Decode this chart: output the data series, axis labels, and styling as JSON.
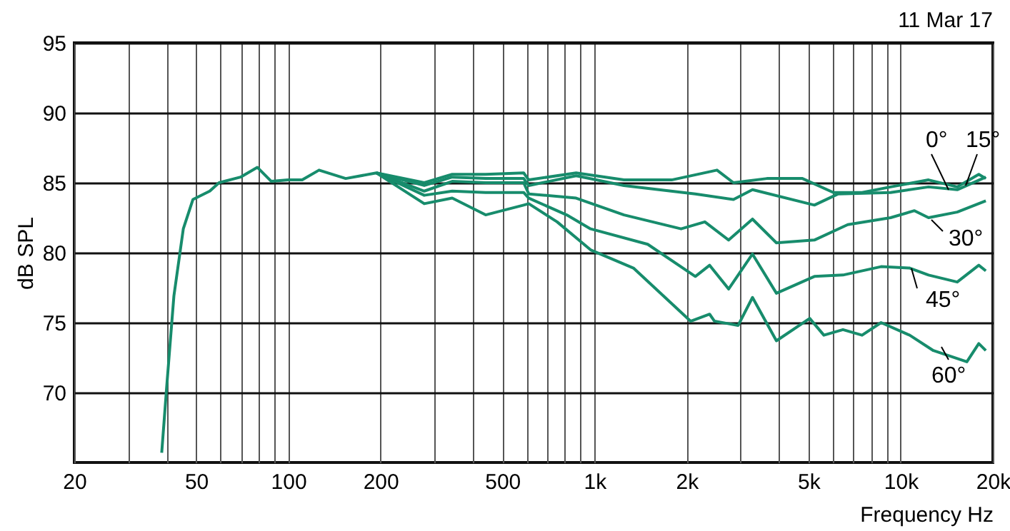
{
  "chart_data": {
    "type": "line",
    "xlabel": "Frequency Hz",
    "ylabel": "dB SPL",
    "annotations": [
      "11 Mar 17"
    ],
    "log": "x",
    "grid": true,
    "legend": false,
    "marker": "none",
    "line_style": "solid",
    "xlim": [
      20,
      20000
    ],
    "ylim": [
      65,
      95
    ],
    "xticks": [
      20,
      {
        "value": 30,
        "label": null
      },
      {
        "value": 40,
        "label": null
      },
      50,
      {
        "value": 60,
        "label": null
      },
      {
        "value": 70,
        "label": null
      },
      {
        "value": 80,
        "label": null
      },
      {
        "value": 90,
        "label": null
      },
      100,
      200,
      {
        "value": 300,
        "label": null
      },
      {
        "value": 400,
        "label": null
      },
      500,
      {
        "value": 600,
        "label": null
      },
      {
        "value": 700,
        "label": null
      },
      {
        "value": 800,
        "label": null
      },
      {
        "value": 900,
        "label": null
      },
      {
        "value": 1000,
        "label": "1k"
      },
      {
        "value": 2000,
        "label": "2k"
      },
      {
        "value": 3000,
        "label": null
      },
      {
        "value": 4000,
        "label": null
      },
      {
        "value": 5000,
        "label": "5k"
      },
      {
        "value": 6000,
        "label": null
      },
      {
        "value": 7000,
        "label": null
      },
      {
        "value": 8000,
        "label": null
      },
      {
        "value": 9000,
        "label": null
      },
      {
        "value": 10000,
        "label": "10k"
      },
      {
        "value": 20000,
        "label": "20k"
      }
    ],
    "yticks": [
      70,
      75,
      80,
      85,
      90,
      95
    ],
    "series": [
      {
        "name": "0°",
        "color": "#178c6c",
        "x": [
          38.6,
          40,
          42.3,
          45.4,
          48.8,
          55.4,
          59.4,
          69.8,
          79.2,
          88,
          100,
          111,
          126,
          154,
          194,
          278,
          343,
          441,
          587,
          610,
          871,
          1248,
          1786,
          2512,
          2844,
          3656,
          4777,
          6030,
          7480,
          9270,
          12330,
          15300,
          17990,
          18970
        ],
        "values": [
          65.7,
          70.2,
          76.9,
          81.7,
          83.8,
          84.4,
          85.0,
          85.4,
          86.1,
          85.1,
          85.2,
          85.2,
          85.9,
          85.3,
          85.7,
          85.0,
          85.6,
          85.6,
          85.7,
          85.2,
          85.7,
          85.2,
          85.2,
          85.9,
          85.0,
          85.3,
          85.3,
          84.3,
          84.3,
          84.7,
          85.2,
          84.7,
          85.6,
          85.3
        ]
      },
      {
        "name": "15°",
        "color": "#178c6c",
        "x": [
          194,
          278,
          343,
          441,
          587,
          610,
          871,
          1248,
          2135,
          2844,
          3281,
          5225,
          6252,
          9270,
          12330,
          15300,
          18970
        ],
        "values": [
          85.7,
          84.8,
          85.4,
          85.3,
          85.3,
          84.8,
          85.5,
          84.8,
          84.2,
          83.8,
          84.5,
          83.4,
          84.2,
          84.3,
          84.7,
          84.5,
          85.4
        ]
      },
      {
        "name": "30°",
        "color": "#178c6c",
        "x": [
          194,
          278,
          343,
          441,
          587,
          610,
          871,
          1248,
          1918,
          2293,
          2743,
          3281,
          3928,
          5225,
          6715,
          9270,
          11090,
          12330,
          15300,
          18970
        ],
        "values": [
          85.7,
          84.4,
          85.1,
          85.0,
          85.0,
          84.2,
          83.9,
          82.7,
          81.7,
          82.2,
          80.9,
          82.4,
          80.7,
          80.9,
          82.0,
          82.5,
          83.0,
          82.5,
          82.9,
          83.7
        ]
      },
      {
        "name": "45°",
        "color": "#178c6c",
        "x": [
          194,
          278,
          343,
          441,
          587,
          610,
          811,
          971,
          1492,
          2135,
          2377,
          2743,
          3281,
          3928,
          5225,
          6478,
          8630,
          10700,
          12330,
          15300,
          17990,
          18970
        ],
        "values": [
          85.7,
          84.1,
          84.4,
          84.3,
          84.3,
          83.9,
          82.7,
          81.7,
          80.6,
          78.3,
          79.1,
          77.4,
          79.9,
          77.1,
          78.3,
          78.4,
          79.0,
          78.9,
          78.4,
          77.9,
          79.1,
          78.7
        ]
      },
      {
        "name": "60°",
        "color": "#178c6c",
        "x": [
          194,
          278,
          343,
          441,
          587,
          610,
          755,
          971,
          1340,
          2060,
          2377,
          2466,
          2946,
          3281,
          3928,
          5045,
          5612,
          6478,
          7480,
          8630,
          10700,
          12790,
          16450,
          17990,
          18970
        ],
        "values": [
          85.7,
          83.5,
          83.9,
          82.7,
          83.4,
          83.5,
          82.2,
          80.2,
          78.9,
          75.1,
          75.6,
          75.1,
          74.8,
          76.8,
          73.7,
          75.3,
          74.1,
          74.5,
          74.1,
          75.0,
          74.1,
          73.0,
          72.2,
          73.5,
          73.0
        ]
      }
    ]
  }
}
